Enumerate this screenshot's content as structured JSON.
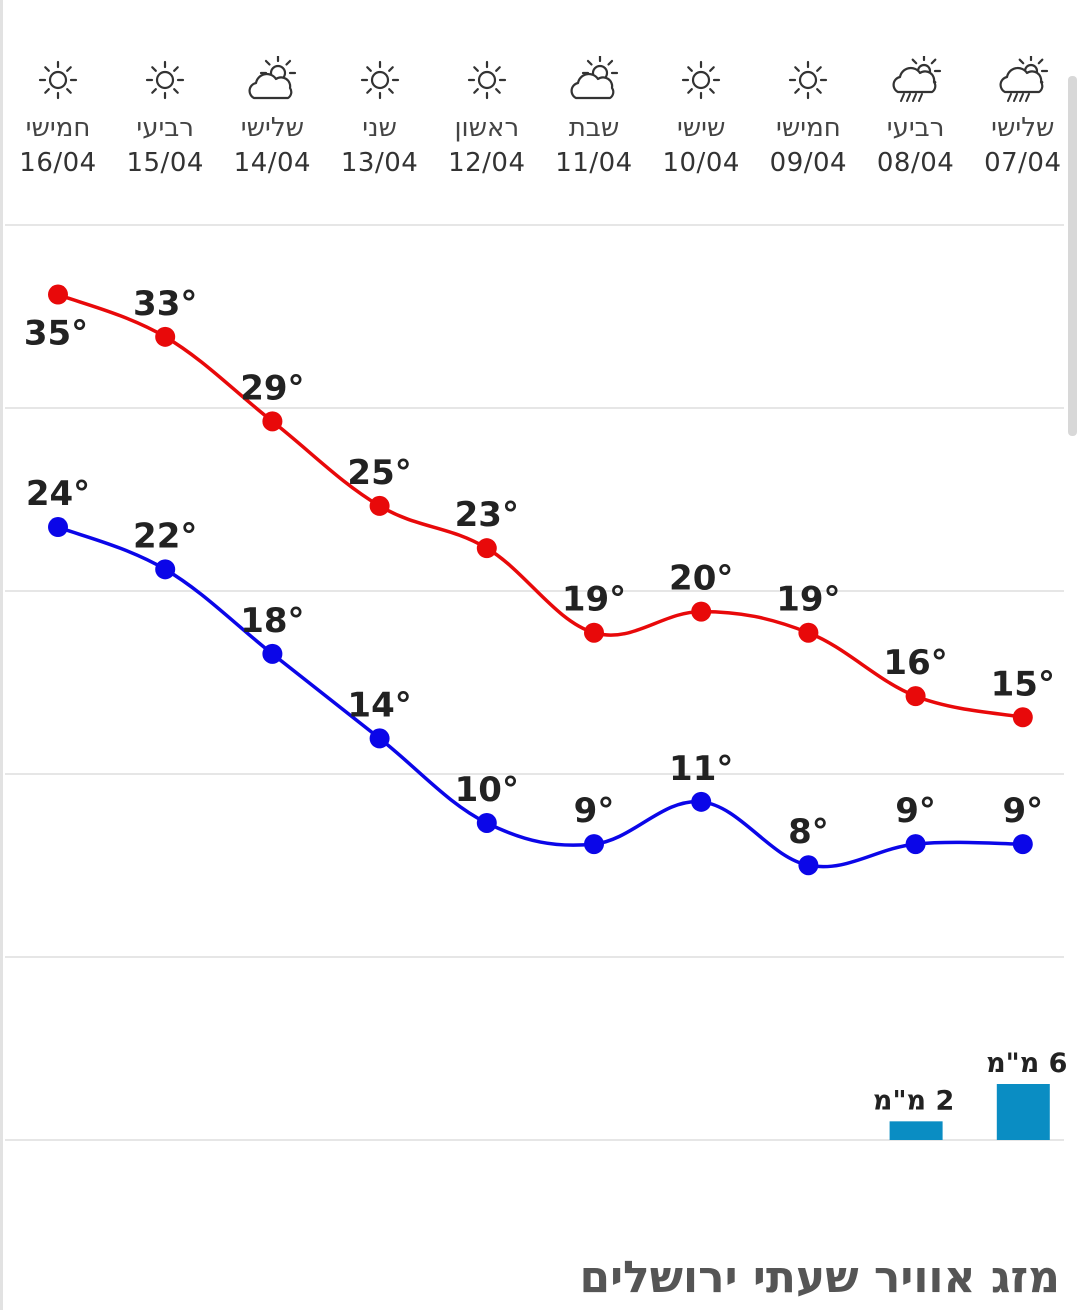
{
  "page": {
    "title": "מזג אוויר שעתי ירושלים"
  },
  "days": [
    {
      "day": "חמישי",
      "date": "16/04",
      "icon": "sun-icon"
    },
    {
      "day": "רביעי",
      "date": "15/04",
      "icon": "sun-icon"
    },
    {
      "day": "שלישי",
      "date": "14/04",
      "icon": "partly-cloudy-icon"
    },
    {
      "day": "שני",
      "date": "13/04",
      "icon": "sun-icon"
    },
    {
      "day": "ראשון",
      "date": "12/04",
      "icon": "sun-icon"
    },
    {
      "day": "שבת",
      "date": "11/04",
      "icon": "partly-cloudy-icon"
    },
    {
      "day": "שישי",
      "date": "10/04",
      "icon": "sun-icon"
    },
    {
      "day": "חמישי",
      "date": "09/04",
      "icon": "sun-icon"
    },
    {
      "day": "רביעי",
      "date": "08/04",
      "icon": "rain-cloud-icon"
    },
    {
      "day": "שלישי",
      "date": "07/04",
      "icon": "rain-cloud-icon"
    }
  ],
  "chart_data": {
    "type": "line",
    "categories": [
      "16/04",
      "15/04",
      "14/04",
      "13/04",
      "12/04",
      "11/04",
      "10/04",
      "09/04",
      "08/04",
      "07/04"
    ],
    "series": [
      {
        "key": "max",
        "values": [
          35,
          33,
          29,
          25,
          23,
          19,
          20,
          19,
          16,
          15
        ],
        "labels": [
          "35°",
          "33°",
          "29°",
          "25°",
          "23°",
          "19°",
          "20°",
          "19°",
          "16°",
          "15°"
        ],
        "color": "#e8090a"
      },
      {
        "key": "min",
        "values": [
          24,
          22,
          18,
          14,
          10,
          9,
          11,
          8,
          9,
          9
        ],
        "labels": [
          "24°",
          "22°",
          "18°",
          "14°",
          "10°",
          "9°",
          "11°",
          "8°",
          "9°",
          "9°"
        ],
        "color": "#0b06e8"
      }
    ],
    "ylim": [
      -5,
      39
    ],
    "grid": true,
    "precipitation": {
      "values": [
        0,
        0,
        0,
        0,
        0,
        0,
        0,
        0,
        2,
        6
      ],
      "labels": [
        "",
        "",
        "",
        "",
        "",
        "",
        "",
        "",
        "2 מ\"מ",
        "6 מ\"מ"
      ],
      "unit": "מ\"מ",
      "color": "#0a8dc3"
    }
  },
  "colors": {
    "gridline": "#e6e6e6",
    "background": "#ffffff"
  }
}
